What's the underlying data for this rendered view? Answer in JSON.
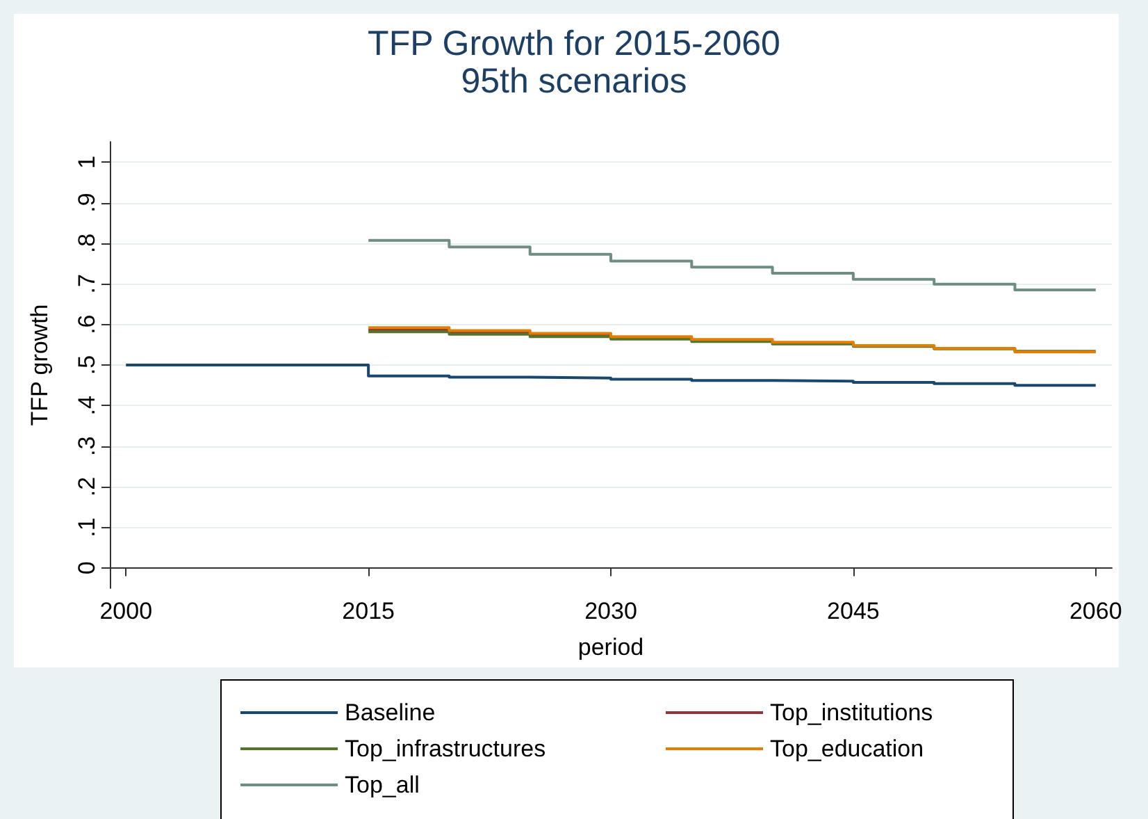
{
  "chart_data": {
    "type": "step",
    "title": "TFP Growth for 2015-2060",
    "subtitle": "95th scenarios",
    "xlabel": "period",
    "ylabel": "TFP growth",
    "xlim": [
      1999,
      2061
    ],
    "xticks": [
      2000,
      2015,
      2030,
      2045,
      2060
    ],
    "ylim": [
      -0.05,
      1.05
    ],
    "yticks": [
      0,
      {
        "value": 0.1,
        "label": ".1"
      },
      {
        "value": 0.2,
        "label": ".2"
      },
      {
        "value": 0.3,
        "label": ".3"
      },
      {
        "value": 0.4,
        "label": ".4"
      },
      {
        "value": 0.5,
        "label": ".5"
      },
      {
        "value": 0.6,
        "label": ".6"
      },
      {
        "value": 0.7,
        "label": ".7"
      },
      {
        "value": 0.8,
        "label": ".8"
      },
      {
        "value": 0.9,
        "label": ".9"
      },
      1
    ],
    "grid": "y",
    "legend": "bottom",
    "series": [
      {
        "name": "Baseline",
        "color": "#1a476f",
        "x": [
          2000,
          2015,
          2020,
          2025,
          2030,
          2035,
          2040,
          2045,
          2050,
          2055,
          2060
        ],
        "values": [
          0.5,
          0.473,
          0.47,
          0.468,
          0.465,
          0.462,
          0.46,
          0.457,
          0.454,
          0.45,
          0.45
        ]
      },
      {
        "name": "Top_institutions",
        "color": "#90353b",
        "x": [
          2015,
          2020,
          2025,
          2030
        ],
        "values": [
          0.587,
          0.58,
          0.574,
          0.574
        ]
      },
      {
        "name": "Top_infrastructures",
        "color": "#55752f",
        "x": [
          2015,
          2020,
          2025,
          2030,
          2035,
          2040,
          2045,
          2050,
          2055,
          2060
        ],
        "values": [
          0.582,
          0.576,
          0.57,
          0.564,
          0.558,
          0.552,
          0.546,
          0.54,
          0.534,
          0.534
        ]
      },
      {
        "name": "Top_education",
        "color": "#e37e00",
        "x": [
          2015,
          2020,
          2025,
          2030,
          2035,
          2040,
          2045,
          2050,
          2055,
          2060
        ],
        "values": [
          0.592,
          0.585,
          0.578,
          0.57,
          0.563,
          0.556,
          0.548,
          0.541,
          0.532,
          0.532
        ]
      },
      {
        "name": "Top_all",
        "color": "#6e8e84",
        "x": [
          2015,
          2020,
          2025,
          2030,
          2035,
          2040,
          2045,
          2050,
          2055,
          2060
        ],
        "values": [
          0.807,
          0.791,
          0.773,
          0.756,
          0.741,
          0.726,
          0.711,
          0.699,
          0.685,
          0.685
        ]
      }
    ]
  }
}
